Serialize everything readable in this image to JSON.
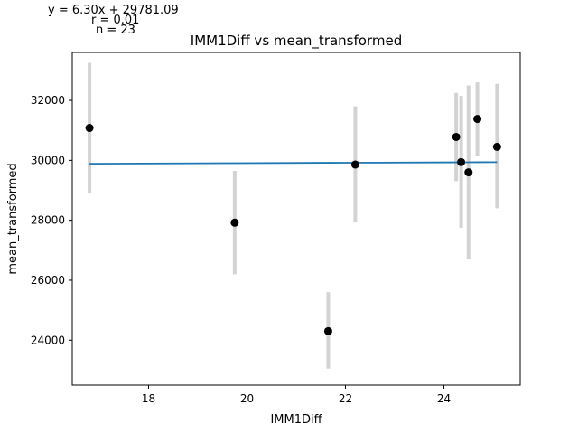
{
  "stats": {
    "equation": "y = 6.30x + 29781.09",
    "r": "r = 0.01",
    "n": "n = 23"
  },
  "chart_data": {
    "type": "scatter",
    "title": "IMM1Diff vs mean_transformed",
    "xlabel": "IMM1Diff",
    "ylabel": "mean_transformed",
    "xlim": [
      16.45,
      25.55
    ],
    "ylim": [
      22500,
      33600
    ],
    "xticks": [
      18,
      20,
      22,
      24
    ],
    "yticks": [
      24000,
      26000,
      28000,
      30000,
      32000
    ],
    "xtick_labels": [
      "18",
      "20",
      "22",
      "24"
    ],
    "ytick_labels": [
      "24000",
      "26000",
      "28000",
      "30000",
      "32000"
    ],
    "grid": false,
    "points": [
      {
        "x": 16.8,
        "y": 31080,
        "err_low": 28900,
        "err_high": 33250
      },
      {
        "x": 19.75,
        "y": 27920,
        "err_low": 26200,
        "err_high": 29650
      },
      {
        "x": 21.65,
        "y": 24300,
        "err_low": 23050,
        "err_high": 25600
      },
      {
        "x": 22.2,
        "y": 29860,
        "err_low": 27950,
        "err_high": 31800
      },
      {
        "x": 24.25,
        "y": 30780,
        "err_low": 29300,
        "err_high": 32250
      },
      {
        "x": 24.35,
        "y": 29940,
        "err_low": 27750,
        "err_high": 32150
      },
      {
        "x": 24.5,
        "y": 29600,
        "err_low": 26700,
        "err_high": 32500
      },
      {
        "x": 24.68,
        "y": 31380,
        "err_low": 30150,
        "err_high": 32600
      },
      {
        "x": 25.08,
        "y": 30450,
        "err_low": 28400,
        "err_high": 32550
      }
    ],
    "fit_line": {
      "x": [
        16.8,
        19.75,
        21.65,
        22.2,
        24.25,
        24.35,
        24.5,
        24.68,
        25.08
      ],
      "y": [
        29886.9,
        29905.5,
        29917.5,
        29921.0,
        29933.9,
        29934.5,
        29935.4,
        29936.6,
        29939.1
      ]
    },
    "colors": {
      "point": "#000000",
      "errorbar": "#d3d3d3",
      "fit": "#1f77b4"
    }
  }
}
